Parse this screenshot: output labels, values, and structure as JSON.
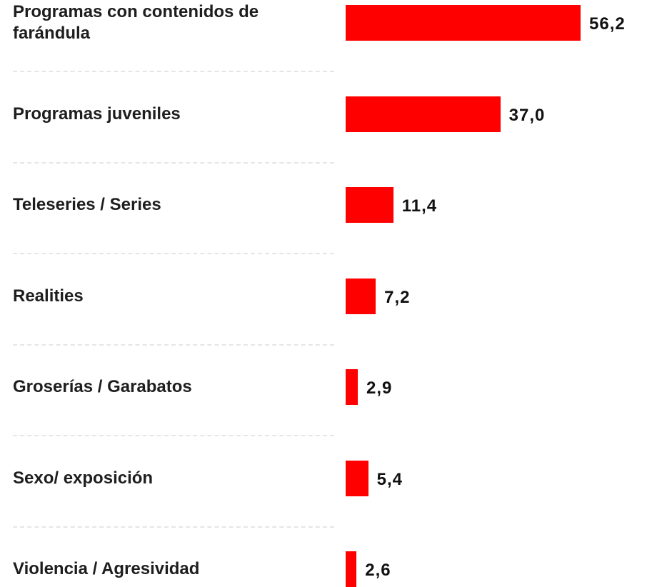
{
  "chart_data": {
    "type": "bar",
    "orientation": "horizontal",
    "color": "#ff0000",
    "categories": [
      "Programas con contenidos de farándula",
      "Programas juveniles",
      "Teleseries / Series",
      "Realities",
      "Groserías / Garabatos",
      "Sexo/ exposición",
      "Violencia / Agresividad"
    ],
    "values": [
      56.2,
      37.0,
      11.4,
      7.2,
      2.9,
      5.4,
      2.6
    ],
    "value_labels": [
      "56,2",
      "37,0",
      "11,4",
      "7,2",
      "2,9",
      "5,4",
      "2,6"
    ]
  }
}
